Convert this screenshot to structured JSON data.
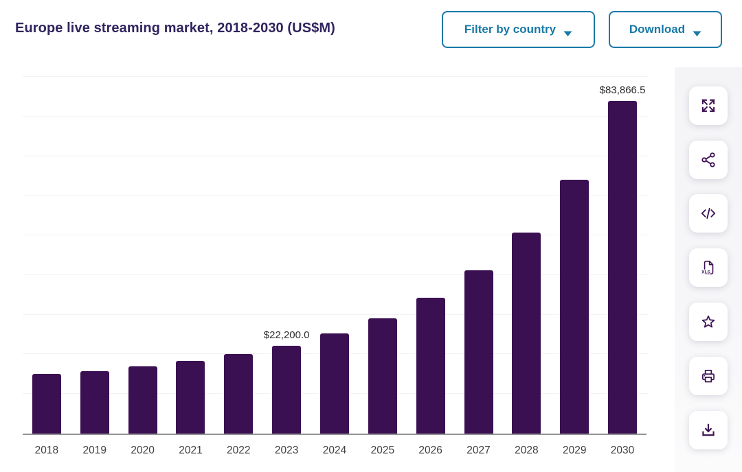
{
  "header": {
    "title": "Europe live streaming market, 2018-2030 (US$M)",
    "filter_button_label": "Filter by country",
    "download_button_label": "Download"
  },
  "toolbar": {
    "xls_label": "XLS",
    "buttons": [
      {
        "name": "fullscreen",
        "icon": "expand-icon"
      },
      {
        "name": "share",
        "icon": "share-icon"
      },
      {
        "name": "embed-code",
        "icon": "code-icon"
      },
      {
        "name": "export-xls",
        "icon": "xls-file-icon"
      },
      {
        "name": "favorite",
        "icon": "star-icon"
      },
      {
        "name": "print",
        "icon": "printer-icon"
      },
      {
        "name": "download",
        "icon": "download-tray-icon"
      }
    ]
  },
  "chart_data": {
    "type": "bar",
    "title": "Europe live streaming market, 2018-2030 (US$M)",
    "categories": [
      "2018",
      "2019",
      "2020",
      "2021",
      "2022",
      "2023",
      "2024",
      "2025",
      "2026",
      "2027",
      "2028",
      "2029",
      "2030"
    ],
    "values": [
      15000,
      15700,
      16900,
      18300,
      20100,
      22200.0,
      25300,
      29000,
      34200,
      41200,
      50700,
      64100,
      83866.5
    ],
    "data_labels": [
      {
        "category": "2023",
        "text": "$22,200.0"
      },
      {
        "category": "2030",
        "text": "$83,866.5"
      }
    ],
    "xlabel": "",
    "ylabel": "",
    "ylim": [
      0,
      90000
    ],
    "grid": "horizontal gridlines every 10000, y-axis unlabeled",
    "legend": "none",
    "bar_color": "#3b1053"
  },
  "colors": {
    "bar": "#3b1053",
    "title": "#30245e",
    "accent_teal": "#1779a8",
    "icon_purple": "#3c1053",
    "axis_line": "#949494",
    "gridline": "#f3f3f5",
    "tick_text": "#3f3f3f",
    "data_label_text": "#2e2e2e"
  }
}
